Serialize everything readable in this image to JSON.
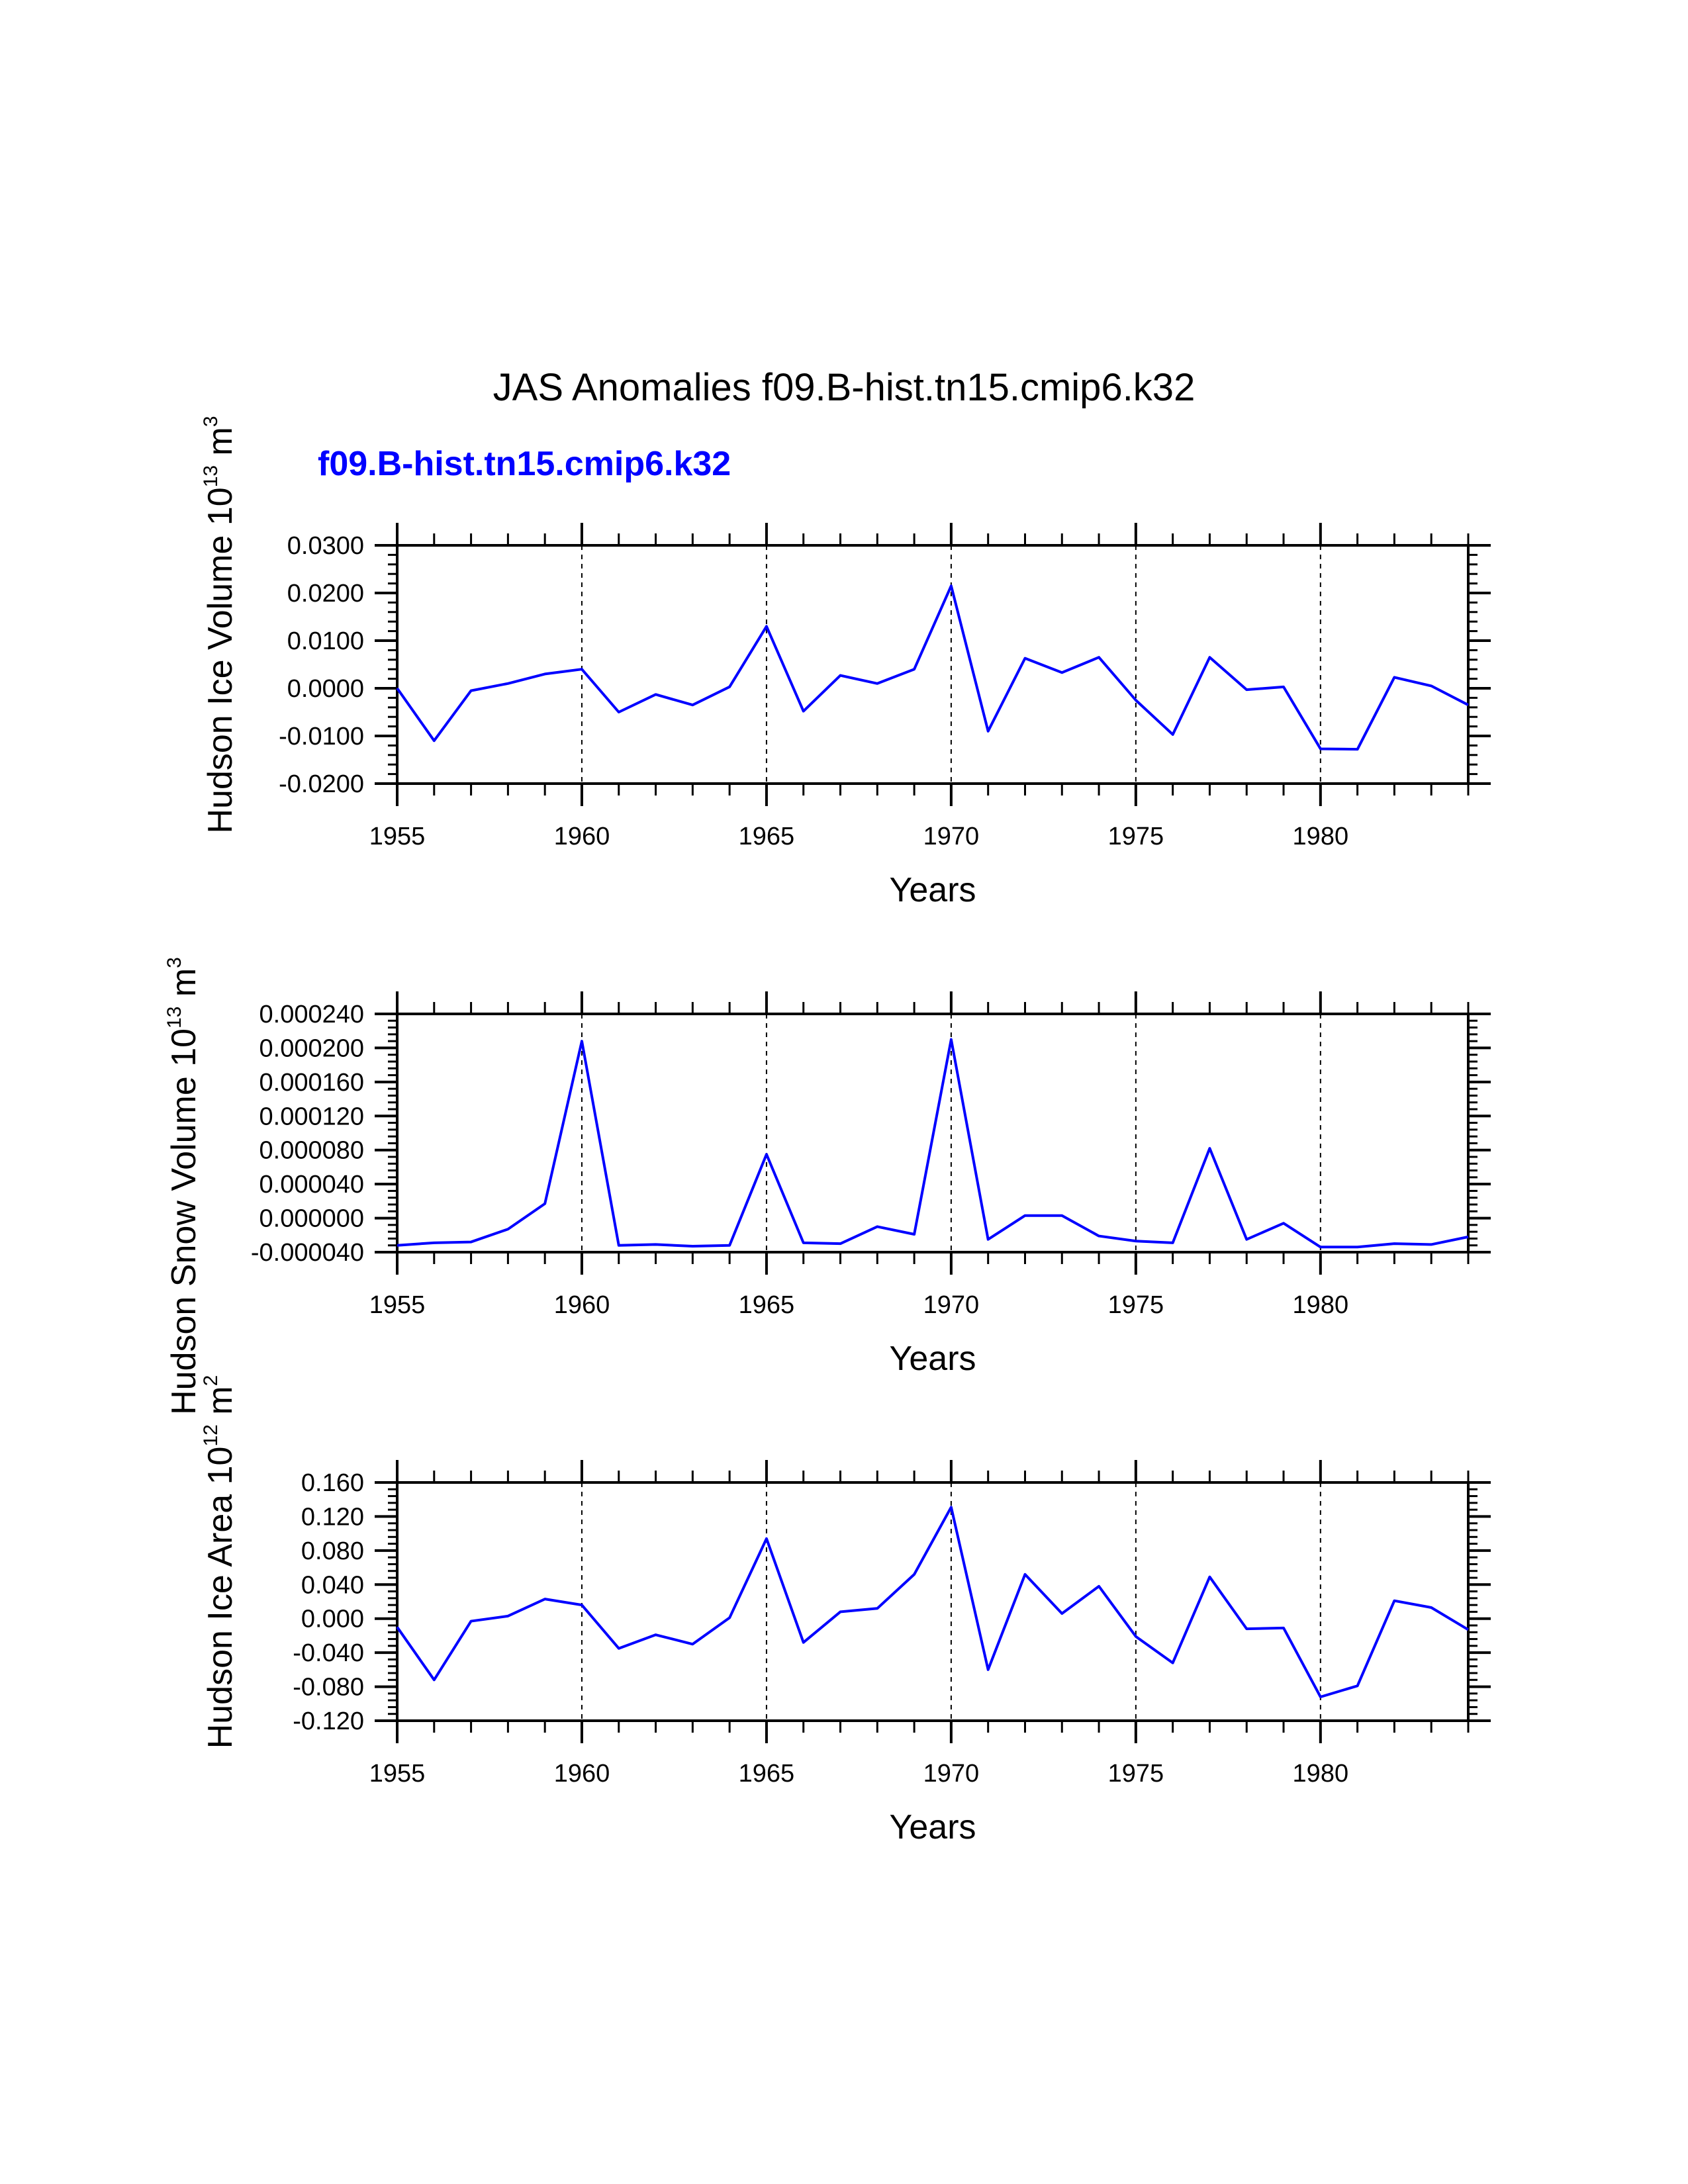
{
  "figure_title": "JAS Anomalies f09.B-hist.tn15.cmip6.k32",
  "series_label": "f09.B-hist.tn15.cmip6.k32",
  "colors": {
    "line": "#0000ff",
    "subtitle": "#0000ff",
    "axes": "#000000"
  },
  "chart_data": [
    {
      "type": "line",
      "ylabel_main": "Hudson Ice Volume 10",
      "ylabel_exp": "13",
      "ylabel_unit": " m",
      "ylabel_unit_exp": "3",
      "xlabel": "Years",
      "xlim": [
        1955,
        1984
      ],
      "ylim": [
        -0.02,
        0.03
      ],
      "xticks": [
        1955,
        1960,
        1965,
        1970,
        1975,
        1980
      ],
      "xtick_labels": [
        "1955",
        "1960",
        "1965",
        "1970",
        "1975",
        "1980"
      ],
      "yticks": [
        -0.02,
        -0.01,
        0.0,
        0.01,
        0.02,
        0.03
      ],
      "ytick_labels": [
        "-0.0200",
        "-0.0100",
        "0.0000",
        "0.0100",
        "0.0200",
        "0.0300"
      ],
      "grid_x": [
        1960,
        1965,
        1970,
        1975,
        1980
      ],
      "x": [
        1955,
        1956,
        1957,
        1958,
        1959,
        1960,
        1961,
        1962,
        1963,
        1964,
        1965,
        1966,
        1967,
        1968,
        1969,
        1970,
        1971,
        1972,
        1973,
        1974,
        1975,
        1976,
        1977,
        1978,
        1979,
        1980,
        1981,
        1982,
        1983,
        1984
      ],
      "values": [
        0.0,
        -0.011,
        -0.0005,
        0.001,
        0.003,
        0.004,
        -0.005,
        -0.0013,
        -0.0035,
        0.0003,
        0.013,
        -0.0048,
        0.0027,
        0.001,
        0.004,
        0.0215,
        -0.009,
        0.0063,
        0.0033,
        0.0065,
        -0.0025,
        -0.0097,
        0.0065,
        -0.0003,
        0.0003,
        -0.0127,
        -0.0128,
        0.0023,
        0.0005,
        -0.0035
      ]
    },
    {
      "type": "line",
      "ylabel_main": "Hudson Snow Volume 10",
      "ylabel_exp": "13",
      "ylabel_unit": " m",
      "ylabel_unit_exp": "3",
      "xlabel": "Years",
      "xlim": [
        1955,
        1984
      ],
      "ylim": [
        -4e-05,
        0.00024
      ],
      "xticks": [
        1955,
        1960,
        1965,
        1970,
        1975,
        1980
      ],
      "xtick_labels": [
        "1955",
        "1960",
        "1965",
        "1970",
        "1975",
        "1980"
      ],
      "yticks": [
        -4e-05,
        0.0,
        4e-05,
        8e-05,
        0.00012,
        0.00016,
        0.0002,
        0.00024
      ],
      "ytick_labels": [
        "-0.000040",
        "0.000000",
        "0.000040",
        "0.000080",
        "0.000120",
        "0.000160",
        "0.000200",
        "0.000240"
      ],
      "grid_x": [
        1960,
        1965,
        1970,
        1975,
        1980
      ],
      "x": [
        1955,
        1956,
        1957,
        1958,
        1959,
        1960,
        1961,
        1962,
        1963,
        1964,
        1965,
        1966,
        1967,
        1968,
        1969,
        1970,
        1971,
        1972,
        1973,
        1974,
        1975,
        1976,
        1977,
        1978,
        1979,
        1980,
        1981,
        1982,
        1983,
        1984
      ],
      "values": [
        -3.2e-05,
        -2.9e-05,
        -2.8e-05,
        -1.3e-05,
        1.7e-05,
        0.000208,
        -3.2e-05,
        -3.1e-05,
        -3.3e-05,
        -3.2e-05,
        7.5e-05,
        -2.9e-05,
        -3e-05,
        -1e-05,
        -1.9e-05,
        0.00021,
        -2.5e-05,
        3e-06,
        3e-06,
        -2.1e-05,
        -2.7e-05,
        -2.9e-05,
        8.2e-05,
        -2.5e-05,
        -6e-06,
        -3.4e-05,
        -3.4e-05,
        -3e-05,
        -3.1e-05,
        -2.2e-05
      ]
    },
    {
      "type": "line",
      "ylabel_main": "Hudson Ice Area 10",
      "ylabel_exp": "12",
      "ylabel_unit": " m",
      "ylabel_unit_exp": "2",
      "xlabel": "Years",
      "xlim": [
        1955,
        1984
      ],
      "ylim": [
        -0.12,
        0.16
      ],
      "xticks": [
        1955,
        1960,
        1965,
        1970,
        1975,
        1980
      ],
      "xtick_labels": [
        "1955",
        "1960",
        "1965",
        "1970",
        "1975",
        "1980"
      ],
      "yticks": [
        -0.12,
        -0.08,
        -0.04,
        0.0,
        0.04,
        0.08,
        0.12,
        0.16
      ],
      "ytick_labels": [
        "-0.120",
        "-0.080",
        "-0.040",
        "0.000",
        "0.040",
        "0.080",
        "0.120",
        "0.160"
      ],
      "grid_x": [
        1960,
        1965,
        1970,
        1975,
        1980
      ],
      "x": [
        1955,
        1956,
        1957,
        1958,
        1959,
        1960,
        1961,
        1962,
        1963,
        1964,
        1965,
        1966,
        1967,
        1968,
        1969,
        1970,
        1971,
        1972,
        1973,
        1974,
        1975,
        1976,
        1977,
        1978,
        1979,
        1980,
        1981,
        1982,
        1983,
        1984
      ],
      "values": [
        -0.01,
        -0.072,
        -0.003,
        0.003,
        0.023,
        0.016,
        -0.035,
        -0.019,
        -0.03,
        0.001,
        0.094,
        -0.028,
        0.008,
        0.012,
        0.052,
        0.131,
        -0.06,
        0.052,
        0.006,
        0.038,
        -0.021,
        -0.052,
        0.049,
        -0.012,
        -0.011,
        -0.092,
        -0.079,
        0.021,
        0.013,
        -0.013
      ]
    }
  ]
}
